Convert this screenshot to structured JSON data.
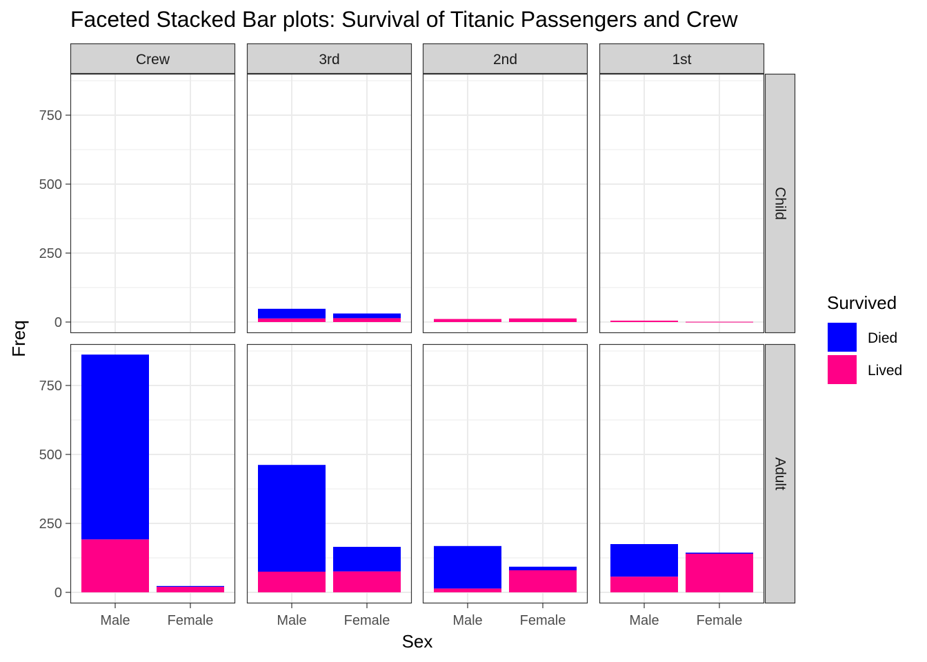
{
  "chart_data": {
    "type": "bar",
    "stacked": true,
    "faceted": true,
    "title": "Faceted Stacked Bar plots: Survival of Titanic Passengers and Crew",
    "xlabel": "Sex",
    "ylabel": "Freq",
    "ylim": [
      -40,
      900
    ],
    "yticks": [
      0,
      250,
      500,
      750
    ],
    "ytick_labels": [
      "0",
      "250",
      "500",
      "750"
    ],
    "categories": [
      "Male",
      "Female"
    ],
    "col_facets": [
      "Crew",
      "3rd",
      "2nd",
      "1st"
    ],
    "row_facets": [
      "Child",
      "Adult"
    ],
    "legend": {
      "title": "Survived",
      "position": "right",
      "items": [
        {
          "label": "Died",
          "color": "#0000FF"
        },
        {
          "label": "Lived",
          "color": "#FF0087"
        }
      ]
    },
    "panels": [
      {
        "row": "Child",
        "col": "Crew",
        "series": [
          {
            "name": "Died",
            "values": [
              0,
              0
            ]
          },
          {
            "name": "Lived",
            "values": [
              0,
              0
            ]
          }
        ]
      },
      {
        "row": "Child",
        "col": "3rd",
        "series": [
          {
            "name": "Died",
            "values": [
              35,
              17
            ]
          },
          {
            "name": "Lived",
            "values": [
              13,
              14
            ]
          }
        ]
      },
      {
        "row": "Child",
        "col": "2nd",
        "series": [
          {
            "name": "Died",
            "values": [
              0,
              0
            ]
          },
          {
            "name": "Lived",
            "values": [
              11,
              13
            ]
          }
        ]
      },
      {
        "row": "Child",
        "col": "1st",
        "series": [
          {
            "name": "Died",
            "values": [
              0,
              0
            ]
          },
          {
            "name": "Lived",
            "values": [
              5,
              1
            ]
          }
        ]
      },
      {
        "row": "Adult",
        "col": "Crew",
        "series": [
          {
            "name": "Died",
            "values": [
              670,
              3
            ]
          },
          {
            "name": "Lived",
            "values": [
              192,
              20
            ]
          }
        ]
      },
      {
        "row": "Adult",
        "col": "3rd",
        "series": [
          {
            "name": "Died",
            "values": [
              387,
              89
            ]
          },
          {
            "name": "Lived",
            "values": [
              75,
              76
            ]
          }
        ]
      },
      {
        "row": "Adult",
        "col": "2nd",
        "series": [
          {
            "name": "Died",
            "values": [
              154,
              13
            ]
          },
          {
            "name": "Lived",
            "values": [
              14,
              80
            ]
          }
        ]
      },
      {
        "row": "Adult",
        "col": "1st",
        "series": [
          {
            "name": "Died",
            "values": [
              118,
              4
            ]
          },
          {
            "name": "Lived",
            "values": [
              57,
              140
            ]
          }
        ]
      }
    ]
  }
}
